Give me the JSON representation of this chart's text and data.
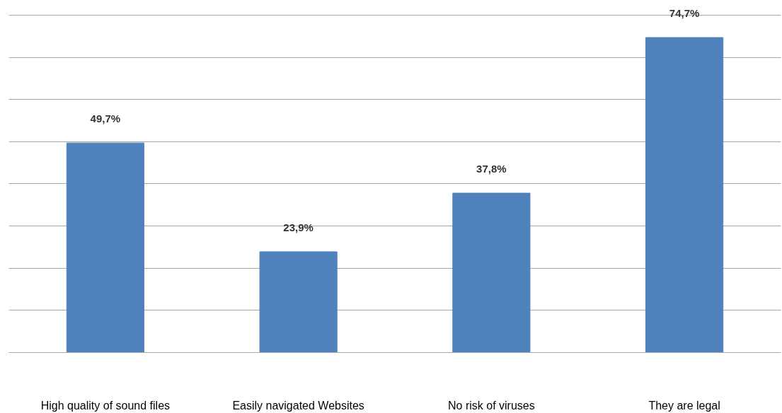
{
  "chart_data": {
    "type": "bar",
    "categories": [
      "High quality of sound files",
      "Easily navigated Websites",
      "No risk of viruses",
      "They are legal"
    ],
    "values": [
      49.7,
      23.9,
      37.8,
      74.7
    ],
    "value_labels": [
      "49,7%",
      "23,9%",
      "37,8%",
      "74,7%"
    ],
    "color": "#4f81bd",
    "grid": "y",
    "tick_labels": "x"
  }
}
